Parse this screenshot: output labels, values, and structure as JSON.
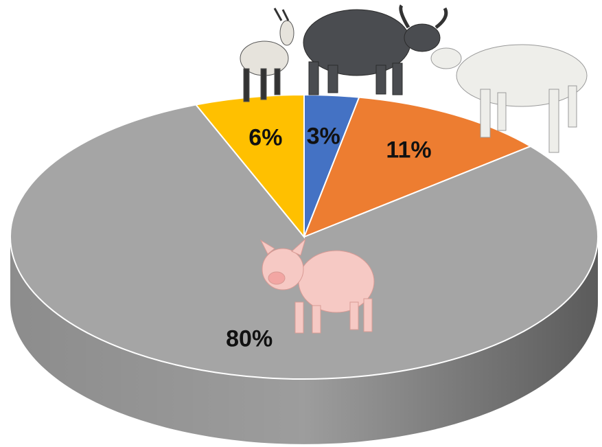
{
  "chart_data": {
    "type": "pie",
    "values": [
      3,
      11,
      80,
      6
    ],
    "value_labels": [
      "3%",
      "11%",
      "80%",
      "6%"
    ],
    "colors": [
      "#4472c4",
      "#ed7d31",
      "#a5a5a5",
      "#ffc000"
    ]
  }
}
